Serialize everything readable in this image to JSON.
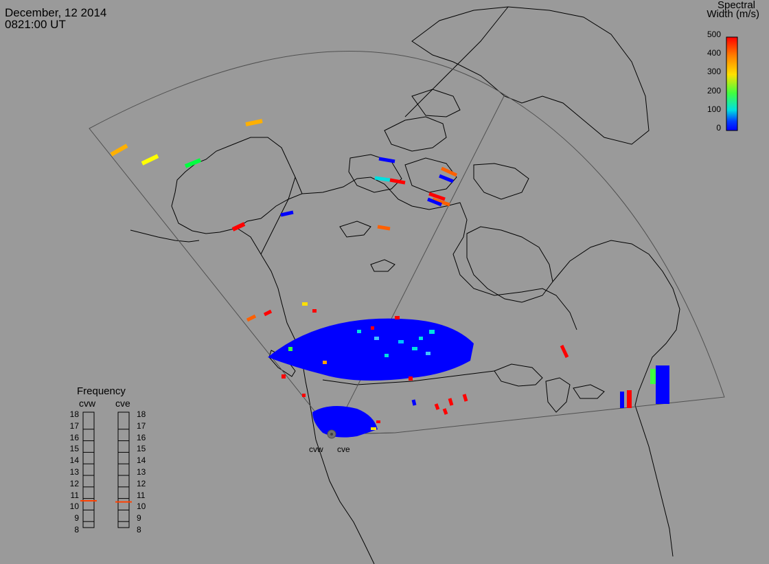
{
  "header": {
    "date": "December, 12 2014",
    "time": "0821:00 UT"
  },
  "colorbar": {
    "title_line1": "Spectral",
    "title_line2": "Width (m/s)",
    "ticks": [
      "500",
      "400",
      "300",
      "200",
      "100",
      "0"
    ],
    "range": [
      0,
      500
    ],
    "colors": [
      "#ff0000",
      "#ff8000",
      "#ffe000",
      "#40ff40",
      "#00e0e0",
      "#0040ff",
      "#0000ff"
    ]
  },
  "frequency_panel": {
    "title": "Frequency",
    "columns": [
      "cvw",
      "cve"
    ],
    "scale": [
      "18",
      "17",
      "16",
      "15",
      "14",
      "13",
      "12",
      "11",
      "10",
      "9",
      "8"
    ],
    "values_mhz": {
      "cvw": 10.8,
      "cve": 10.7
    },
    "indicator_color": "#ff4000"
  },
  "radars": [
    {
      "code": "cvw"
    },
    {
      "code": "cve"
    }
  ],
  "map": {
    "background": "#9a9a9a",
    "coastline_color": "#000000",
    "fov_color": "#505050"
  }
}
